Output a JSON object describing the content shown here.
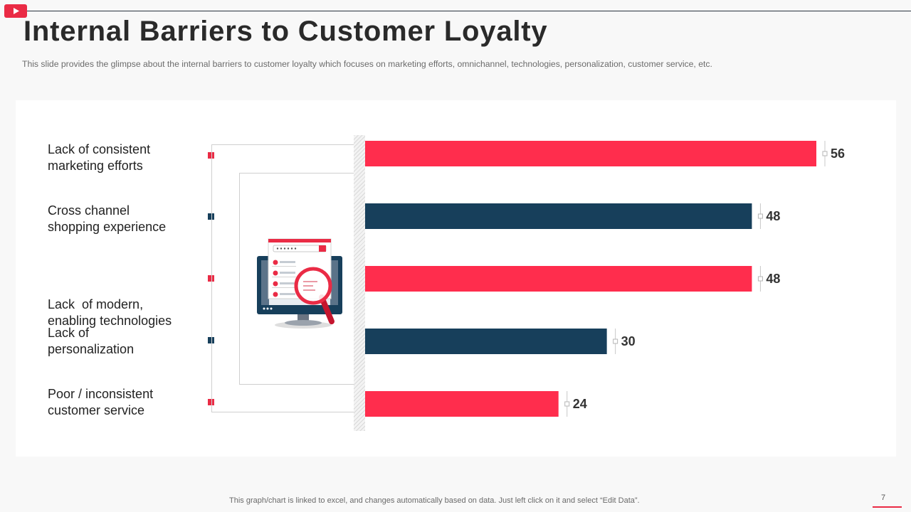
{
  "header": {
    "logo_icon": "play-icon",
    "title": "Internal Barriers to Customer Loyalty",
    "subtitle": "This slide provides  the glimpse about the internal barriers  to customer loyalty which focuses on marketing efforts,  omnichannel,  technologies,  personalization,  customer service,  etc."
  },
  "chart_data": {
    "type": "bar",
    "orientation": "horizontal",
    "categories": [
      "Lack of consistent marketing efforts",
      "Cross channel shopping experience",
      "Lack  of modern, enabling technologies",
      "Lack of personalization",
      "Poor / inconsistent customer service"
    ],
    "label_lines": [
      [
        "Lack of consistent",
        "marketing efforts"
      ],
      [
        "Cross channel",
        "shopping experience"
      ],
      [
        "Lack  of modern,",
        "enabling technologies"
      ],
      [
        "Lack of",
        "personalization"
      ],
      [
        "Poor / inconsistent",
        "customer service"
      ]
    ],
    "values": [
      56,
      48,
      48,
      30,
      24
    ],
    "value_labels": [
      "56",
      "48",
      "48",
      "30",
      "24"
    ],
    "colors": [
      "#ff2d4d",
      "#173f5b",
      "#ff2d4d",
      "#173f5b",
      "#ff2d4d"
    ],
    "xlim": [
      0,
      56
    ],
    "title": "",
    "xlabel": "",
    "ylabel": "",
    "grid": false,
    "legend": "none"
  },
  "illustration": {
    "icon": "computer-search-icon"
  },
  "footer": {
    "note": "This graph/chart is linked to excel,  and changes automatically based on data. Just left click on it and select “Edit Data”.",
    "page_number": "7"
  }
}
